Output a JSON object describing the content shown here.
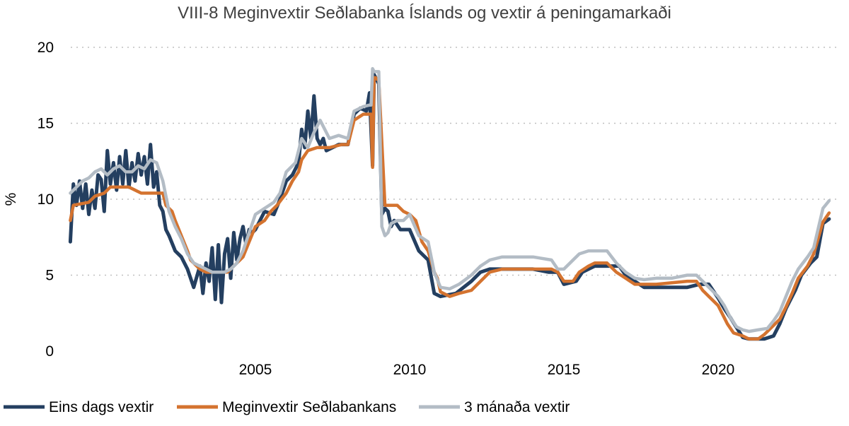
{
  "chart_data": {
    "type": "line",
    "title": "VIII-8 Meginvextir Seðlabanka Íslands og vextir á peningamarkaði",
    "ylabel": "%",
    "xlabel": "",
    "xlim": [
      1998.9,
      2023.9
    ],
    "ylim": [
      0,
      20
    ],
    "yticks": [
      0,
      5,
      10,
      15,
      20
    ],
    "xticks": [
      2005,
      2010,
      2015,
      2020
    ],
    "grid": true,
    "legend_position": "bottom",
    "colors": {
      "eins": "#243f60",
      "megin": "#d4732f",
      "man3": "#b3bcc5"
    },
    "series": [
      {
        "key": "eins",
        "name": "Eins dags vextir",
        "x": [
          1999.0,
          1999.1,
          1999.2,
          1999.3,
          1999.4,
          1999.5,
          1999.6,
          1999.7,
          1999.8,
          1999.9,
          2000.0,
          2000.1,
          2000.2,
          2000.3,
          2000.4,
          2000.5,
          2000.6,
          2000.7,
          2000.8,
          2000.9,
          2001.0,
          2001.1,
          2001.2,
          2001.3,
          2001.4,
          2001.5,
          2001.6,
          2001.7,
          2001.8,
          2001.9,
          2002.0,
          2002.1,
          2002.2,
          2002.4,
          2002.6,
          2002.8,
          2003.0,
          2003.2,
          2003.3,
          2003.4,
          2003.5,
          2003.6,
          2003.7,
          2003.8,
          2003.9,
          2004.0,
          2004.1,
          2004.2,
          2004.3,
          2004.4,
          2004.5,
          2004.6,
          2004.7,
          2004.8,
          2004.9,
          2005.0,
          2005.3,
          2005.6,
          2005.8,
          2006.0,
          2006.2,
          2006.4,
          2006.5,
          2006.6,
          2006.7,
          2006.8,
          2006.9,
          2007.0,
          2007.1,
          2007.2,
          2007.3,
          2007.5,
          2007.7,
          2008.0,
          2008.2,
          2008.4,
          2008.6,
          2008.7,
          2008.8,
          2008.85,
          2008.9,
          2009.0,
          2009.1,
          2009.2,
          2009.3,
          2009.4,
          2009.5,
          2009.7,
          2010.0,
          2010.3,
          2010.6,
          2010.8,
          2011.0,
          2011.5,
          2012.0,
          2012.3,
          2012.6,
          2013.0,
          2013.5,
          2014.0,
          2014.5,
          2014.8,
          2015.0,
          2015.4,
          2015.6,
          2016.0,
          2016.5,
          2016.8,
          2017.0,
          2017.3,
          2017.6,
          2018.0,
          2018.5,
          2019.0,
          2019.4,
          2019.7,
          2020.0,
          2020.2,
          2020.4,
          2020.8,
          2021.0,
          2021.3,
          2021.5,
          2021.8,
          2022.0,
          2022.2,
          2022.5,
          2022.7,
          2023.0,
          2023.2,
          2023.4,
          2023.6
        ],
        "y": [
          7.2,
          11.0,
          9.6,
          11.2,
          9.4,
          11.0,
          9.0,
          10.6,
          9.4,
          11.6,
          11.3,
          9.2,
          13.2,
          11.0,
          12.4,
          10.6,
          12.8,
          11.0,
          13.2,
          10.8,
          12.4,
          11.2,
          13.0,
          11.6,
          12.8,
          11.0,
          13.6,
          10.8,
          11.8,
          9.6,
          9.2,
          8.0,
          7.6,
          6.6,
          6.2,
          5.4,
          4.2,
          5.6,
          3.8,
          5.8,
          4.6,
          6.8,
          3.4,
          7.0,
          3.2,
          6.4,
          7.4,
          4.8,
          7.8,
          6.0,
          7.4,
          8.2,
          7.0,
          8.0,
          7.8,
          8.0,
          9.2,
          9.0,
          10.0,
          11.2,
          11.6,
          12.4,
          14.6,
          13.4,
          15.8,
          14.0,
          16.8,
          14.0,
          13.6,
          14.0,
          13.2,
          13.4,
          13.6,
          13.6,
          15.6,
          16.0,
          15.8,
          17.0,
          12.2,
          18.2,
          18.0,
          17.6,
          9.0,
          9.4,
          9.2,
          8.2,
          8.6,
          8.0,
          8.0,
          6.6,
          6.0,
          3.8,
          3.6,
          3.8,
          4.6,
          5.2,
          5.4,
          5.4,
          5.4,
          5.4,
          5.2,
          5.2,
          4.4,
          4.6,
          5.2,
          5.6,
          5.6,
          5.6,
          5.0,
          4.6,
          4.2,
          4.2,
          4.2,
          4.2,
          4.4,
          4.4,
          3.5,
          2.8,
          2.2,
          0.9,
          0.8,
          0.8,
          0.8,
          1.0,
          1.8,
          2.8,
          4.0,
          5.0,
          5.8,
          6.2,
          8.4,
          8.7
        ]
      },
      {
        "key": "megin",
        "name": "Meginvextir Seðlabankans",
        "x": [
          1999.0,
          1999.1,
          1999.6,
          1999.8,
          2000.1,
          2000.3,
          2000.5,
          2000.9,
          2001.3,
          2001.6,
          2002.0,
          2002.1,
          2002.3,
          2002.4,
          2002.6,
          2002.8,
          2002.9,
          2003.1,
          2003.2,
          2003.4,
          2003.6,
          2003.9,
          2004.1,
          2004.3,
          2004.6,
          2004.8,
          2005.0,
          2005.3,
          2005.5,
          2005.7,
          2006.0,
          2006.2,
          2006.4,
          2006.5,
          2006.7,
          2007.0,
          2007.4,
          2007.8,
          2008.0,
          2008.2,
          2008.5,
          2008.75,
          2008.8,
          2008.85,
          2008.9,
          2009.0,
          2009.2,
          2009.4,
          2009.6,
          2009.8,
          2010.0,
          2010.2,
          2010.4,
          2010.6,
          2010.8,
          2010.9,
          2011.0,
          2011.3,
          2011.6,
          2012.0,
          2012.3,
          2012.6,
          2013.0,
          2013.5,
          2014.0,
          2014.6,
          2014.8,
          2015.0,
          2015.3,
          2015.5,
          2015.8,
          2016.0,
          2016.4,
          2016.7,
          2017.0,
          2017.3,
          2017.6,
          2018.0,
          2018.5,
          2019.0,
          2019.3,
          2019.5,
          2019.7,
          2020.0,
          2020.2,
          2020.3,
          2020.5,
          2020.8,
          2021.0,
          2021.3,
          2021.5,
          2021.7,
          2022.0,
          2022.2,
          2022.4,
          2022.6,
          2022.9,
          2023.1,
          2023.4,
          2023.6
        ],
        "y": [
          8.6,
          9.6,
          9.8,
          10.2,
          10.4,
          10.8,
          10.8,
          10.8,
          10.4,
          10.4,
          10.4,
          9.6,
          9.2,
          8.6,
          7.6,
          6.6,
          6.0,
          5.6,
          5.4,
          5.2,
          5.2,
          5.2,
          5.2,
          5.6,
          6.2,
          7.2,
          8.2,
          8.6,
          9.2,
          9.6,
          10.4,
          11.2,
          11.8,
          12.6,
          13.2,
          13.4,
          13.4,
          13.6,
          13.6,
          15.2,
          15.6,
          15.6,
          12.1,
          18.0,
          18.0,
          17.8,
          9.6,
          9.6,
          9.6,
          9.2,
          9.0,
          8.6,
          7.2,
          6.6,
          5.2,
          4.8,
          3.9,
          3.6,
          3.8,
          4.0,
          4.6,
          5.2,
          5.4,
          5.4,
          5.4,
          5.4,
          5.2,
          4.6,
          4.6,
          5.2,
          5.6,
          5.8,
          5.8,
          5.2,
          4.8,
          4.4,
          4.4,
          4.4,
          4.5,
          4.6,
          4.6,
          4.0,
          3.6,
          3.0,
          2.2,
          1.8,
          1.2,
          1.0,
          0.8,
          0.8,
          1.1,
          1.5,
          2.1,
          2.9,
          3.8,
          4.8,
          5.6,
          6.4,
          8.5,
          9.1
        ]
      },
      {
        "key": "man3",
        "name": "3 mánaða vextir",
        "x": [
          1999.0,
          1999.2,
          1999.4,
          1999.6,
          1999.8,
          2000.0,
          2000.2,
          2000.4,
          2000.6,
          2000.8,
          2001.0,
          2001.2,
          2001.4,
          2001.6,
          2001.8,
          2002.0,
          2002.2,
          2002.4,
          2002.6,
          2002.8,
          2003.0,
          2003.2,
          2003.4,
          2003.6,
          2003.8,
          2004.0,
          2004.2,
          2004.4,
          2004.6,
          2004.8,
          2005.0,
          2005.3,
          2005.6,
          2005.8,
          2006.0,
          2006.3,
          2006.5,
          2006.7,
          2006.9,
          2007.1,
          2007.4,
          2007.7,
          2008.0,
          2008.2,
          2008.5,
          2008.7,
          2008.75,
          2008.8,
          2008.85,
          2009.0,
          2009.1,
          2009.2,
          2009.3,
          2009.4,
          2009.6,
          2009.8,
          2010.0,
          2010.3,
          2010.6,
          2010.8,
          2011.0,
          2011.3,
          2011.6,
          2012.0,
          2012.3,
          2012.6,
          2013.0,
          2013.5,
          2014.0,
          2014.6,
          2014.8,
          2015.0,
          2015.3,
          2015.5,
          2015.8,
          2016.0,
          2016.4,
          2016.7,
          2017.0,
          2017.3,
          2017.6,
          2018.0,
          2018.5,
          2019.0,
          2019.3,
          2019.5,
          2019.7,
          2020.0,
          2020.2,
          2020.4,
          2020.6,
          2020.8,
          2021.0,
          2021.3,
          2021.6,
          2021.8,
          2022.0,
          2022.2,
          2022.4,
          2022.6,
          2022.9,
          2023.1,
          2023.4,
          2023.6
        ],
        "y": [
          10.4,
          10.8,
          11.2,
          11.4,
          11.8,
          12.0,
          11.6,
          12.0,
          12.2,
          11.8,
          11.8,
          12.2,
          12.0,
          12.6,
          12.4,
          11.2,
          9.2,
          8.2,
          7.4,
          6.4,
          5.8,
          5.6,
          5.4,
          5.2,
          5.2,
          5.2,
          5.4,
          5.8,
          6.6,
          7.8,
          9.0,
          9.4,
          9.8,
          10.4,
          11.8,
          12.4,
          14.0,
          13.4,
          14.4,
          15.2,
          14.0,
          14.2,
          14.0,
          15.8,
          16.1,
          16.2,
          16.2,
          18.6,
          18.4,
          18.4,
          8.2,
          7.6,
          7.8,
          8.4,
          8.6,
          8.6,
          9.0,
          7.6,
          7.2,
          5.2,
          4.2,
          4.1,
          4.4,
          5.0,
          5.6,
          6.0,
          6.2,
          6.2,
          6.2,
          6.0,
          5.4,
          5.4,
          6.0,
          6.4,
          6.6,
          6.6,
          6.6,
          5.8,
          5.2,
          4.8,
          4.7,
          4.8,
          4.8,
          5.0,
          5.0,
          4.6,
          4.2,
          3.6,
          3.0,
          2.2,
          1.6,
          1.4,
          1.3,
          1.4,
          1.5,
          2.0,
          2.6,
          3.6,
          4.6,
          5.4,
          6.2,
          6.8,
          9.4,
          9.9
        ]
      }
    ]
  }
}
